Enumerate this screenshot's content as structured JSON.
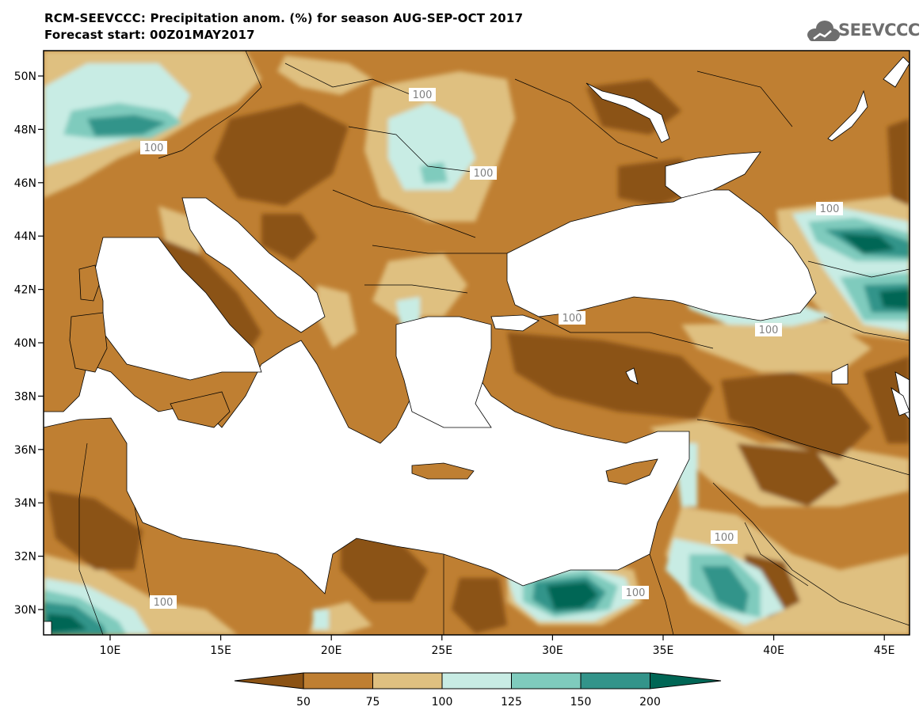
{
  "header": {
    "title_line1": "RCM-SEEVCCC: Precipitation anom. (%) for season AUG-SEP-OCT 2017",
    "title_line2": "Forecast start: 00Z01MAY2017",
    "logo_text": "SEEVCCC"
  },
  "map": {
    "lat_labels": [
      "50N",
      "48N",
      "46N",
      "44N",
      "42N",
      "40N",
      "38N",
      "36N",
      "34N",
      "32N",
      "30N"
    ],
    "lon_labels": [
      "10E",
      "15E",
      "20E",
      "25E",
      "30E",
      "35E",
      "40E",
      "45E"
    ],
    "contour_label": "100",
    "legend": {
      "bins": [
        {
          "color": "#8b5214"
        },
        {
          "color": "#bf7f32"
        },
        {
          "color": "#dfc080"
        },
        {
          "color": "#c8ece4"
        },
        {
          "color": "#7fcbbd"
        },
        {
          "color": "#33948a"
        },
        {
          "color": "#006655"
        }
      ],
      "labels": [
        "50",
        "75",
        "100",
        "125",
        "150",
        "200"
      ]
    },
    "colors": {
      "sea": "#ffffff",
      "land_base": "#bf7f32"
    }
  }
}
